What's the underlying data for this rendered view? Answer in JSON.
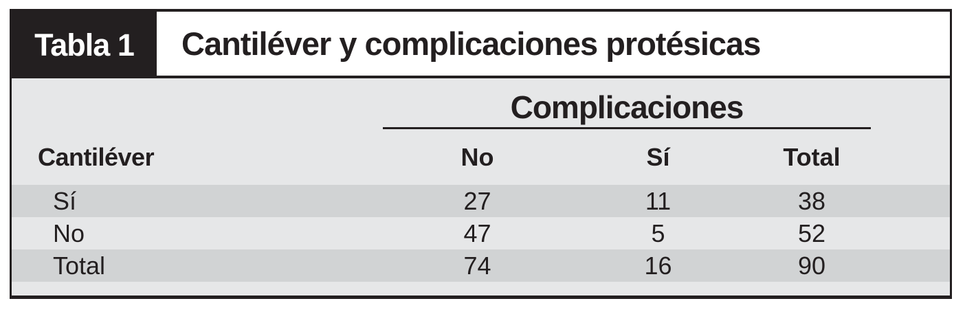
{
  "table": {
    "tag": "Tabla 1",
    "title": "Cantiléver y complicaciones protésicas",
    "span_header": "Complicaciones",
    "row_axis_label": "Cantiléver",
    "columns": [
      "No",
      "Sí",
      "Total"
    ],
    "rows": [
      {
        "label": "Sí",
        "values": [
          "27",
          "11",
          "38"
        ]
      },
      {
        "label": "No",
        "values": [
          "47",
          "5",
          "52"
        ]
      },
      {
        "label": "Total",
        "values": [
          "74",
          "16",
          "90"
        ]
      }
    ]
  },
  "colors": {
    "ink": "#231f20",
    "shaded_row": "#d1d3d4",
    "body_background": "#e6e7e8",
    "tag_background": "#231f20",
    "tag_text": "#ffffff"
  },
  "chart_data": {
    "type": "table",
    "title": "Tabla 1 — Cantiléver y complicaciones protésicas",
    "column_group_header": "Complicaciones",
    "columns": [
      "Cantiléver",
      "No",
      "Sí",
      "Total"
    ],
    "rows": [
      [
        "Sí",
        27,
        11,
        38
      ],
      [
        "No",
        47,
        5,
        52
      ],
      [
        "Total",
        74,
        16,
        90
      ]
    ]
  }
}
